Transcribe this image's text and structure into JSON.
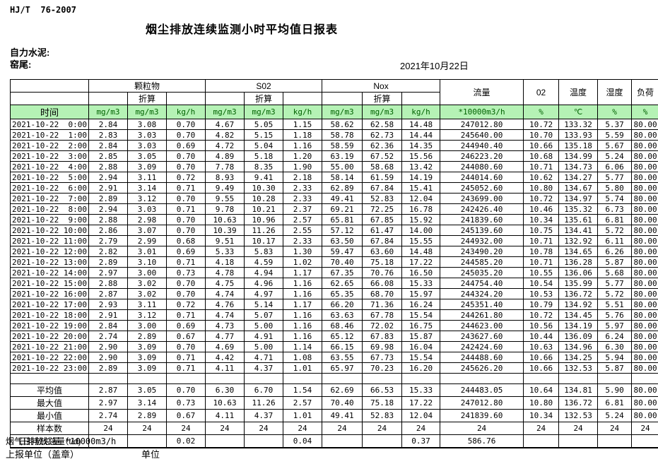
{
  "meta": {
    "standard": "HJ/T  76-2007",
    "title": "烟尘排放连续监测小时平均值日报表",
    "company": "自力水泥:",
    "location": "窑尾:",
    "date": "2021年10月22日"
  },
  "table": {
    "header": {
      "time_label": "时间",
      "groups": {
        "pm": "颗粒物",
        "so2": "S02",
        "nox": "Nox"
      },
      "converted_label": "折算",
      "flow_label": "流量",
      "o2_label": "02",
      "temp_label": "温度",
      "humidity_label": "湿度",
      "load_label": "负荷",
      "units": [
        "mg/m3",
        "mg/m3",
        "kg/h",
        "mg/m3",
        "mg/m3",
        "kg/h",
        "mg/m3",
        "mg/m3",
        "kg/h",
        "*10000m3/h",
        "%",
        "℃",
        "%",
        "%"
      ]
    },
    "rows": [
      {
        "time": "2021-10-22  0:00",
        "values": [
          "2.84",
          "3.08",
          "0.70",
          "4.67",
          "5.05",
          "1.15",
          "58.62",
          "62.58",
          "14.48",
          "247012.80",
          "10.72",
          "133.32",
          "5.37",
          "80.00"
        ]
      },
      {
        "time": "2021-10-22  1:00",
        "values": [
          "2.83",
          "3.03",
          "0.70",
          "4.82",
          "5.15",
          "1.18",
          "58.78",
          "62.73",
          "14.44",
          "245640.00",
          "10.70",
          "133.93",
          "5.59",
          "80.00"
        ]
      },
      {
        "time": "2021-10-22  2:00",
        "values": [
          "2.84",
          "3.03",
          "0.69",
          "4.72",
          "5.04",
          "1.16",
          "58.59",
          "62.36",
          "14.35",
          "244940.40",
          "10.66",
          "135.18",
          "5.67",
          "80.00"
        ]
      },
      {
        "time": "2021-10-22  3:00",
        "values": [
          "2.85",
          "3.05",
          "0.70",
          "4.89",
          "5.18",
          "1.20",
          "63.19",
          "67.52",
          "15.56",
          "246223.20",
          "10.68",
          "134.99",
          "5.24",
          "80.00"
        ]
      },
      {
        "time": "2021-10-22  4:00",
        "values": [
          "2.88",
          "3.09",
          "0.70",
          "7.78",
          "8.35",
          "1.90",
          "55.00",
          "58.68",
          "13.42",
          "244080.60",
          "10.71",
          "134.73",
          "6.06",
          "80.00"
        ]
      },
      {
        "time": "2021-10-22  5:00",
        "values": [
          "2.94",
          "3.11",
          "0.72",
          "8.93",
          "9.41",
          "2.18",
          "58.14",
          "61.59",
          "14.19",
          "244014.60",
          "10.62",
          "134.27",
          "5.77",
          "80.00"
        ]
      },
      {
        "time": "2021-10-22  6:00",
        "values": [
          "2.91",
          "3.14",
          "0.71",
          "9.49",
          "10.30",
          "2.33",
          "62.89",
          "67.84",
          "15.41",
          "245052.60",
          "10.80",
          "134.67",
          "5.80",
          "80.00"
        ]
      },
      {
        "time": "2021-10-22  7:00",
        "values": [
          "2.89",
          "3.12",
          "0.70",
          "9.55",
          "10.28",
          "2.33",
          "49.41",
          "52.83",
          "12.04",
          "243699.00",
          "10.72",
          "134.97",
          "5.74",
          "80.00"
        ]
      },
      {
        "time": "2021-10-22  8:00",
        "values": [
          "2.94",
          "3.03",
          "0.71",
          "9.78",
          "10.21",
          "2.37",
          "69.21",
          "72.25",
          "16.78",
          "242426.40",
          "10.46",
          "135.32",
          "6.73",
          "80.00"
        ]
      },
      {
        "time": "2021-10-22  9:00",
        "values": [
          "2.88",
          "2.98",
          "0.70",
          "10.63",
          "10.96",
          "2.57",
          "65.81",
          "67.85",
          "15.92",
          "241839.60",
          "10.34",
          "135.61",
          "6.81",
          "80.00"
        ]
      },
      {
        "time": "2021-10-22 10:00",
        "values": [
          "2.86",
          "3.07",
          "0.70",
          "10.39",
          "11.26",
          "2.55",
          "57.12",
          "61.47",
          "14.00",
          "245139.60",
          "10.75",
          "134.41",
          "5.72",
          "80.00"
        ]
      },
      {
        "time": "2021-10-22 11:00",
        "values": [
          "2.79",
          "2.99",
          "0.68",
          "9.51",
          "10.17",
          "2.33",
          "63.50",
          "67.84",
          "15.55",
          "244932.00",
          "10.71",
          "132.92",
          "6.11",
          "80.00"
        ]
      },
      {
        "time": "2021-10-22 12:00",
        "values": [
          "2.82",
          "3.01",
          "0.69",
          "5.33",
          "5.83",
          "1.30",
          "59.47",
          "63.60",
          "14.48",
          "243490.20",
          "10.78",
          "134.65",
          "6.26",
          "80.00"
        ]
      },
      {
        "time": "2021-10-22 13:00",
        "values": [
          "2.89",
          "3.10",
          "0.71",
          "4.18",
          "4.59",
          "1.02",
          "70.40",
          "75.18",
          "17.22",
          "244585.20",
          "10.71",
          "136.28",
          "5.87",
          "80.00"
        ]
      },
      {
        "time": "2021-10-22 14:00",
        "values": [
          "2.97",
          "3.00",
          "0.73",
          "4.78",
          "4.94",
          "1.17",
          "67.35",
          "70.76",
          "16.50",
          "245035.20",
          "10.55",
          "136.06",
          "5.68",
          "80.00"
        ]
      },
      {
        "time": "2021-10-22 15:00",
        "values": [
          "2.88",
          "3.02",
          "0.70",
          "4.75",
          "4.96",
          "1.16",
          "62.65",
          "66.08",
          "15.33",
          "244754.40",
          "10.54",
          "135.99",
          "5.77",
          "80.00"
        ]
      },
      {
        "time": "2021-10-22 16:00",
        "values": [
          "2.87",
          "3.02",
          "0.70",
          "4.74",
          "4.97",
          "1.16",
          "65.35",
          "68.70",
          "15.97",
          "244324.20",
          "10.53",
          "136.72",
          "5.72",
          "80.00"
        ]
      },
      {
        "time": "2021-10-22 17:00",
        "values": [
          "2.93",
          "3.11",
          "0.72",
          "4.76",
          "5.14",
          "1.17",
          "66.20",
          "71.36",
          "16.24",
          "245351.40",
          "10.79",
          "134.92",
          "5.51",
          "80.00"
        ]
      },
      {
        "time": "2021-10-22 18:00",
        "values": [
          "2.91",
          "3.12",
          "0.71",
          "4.74",
          "5.07",
          "1.16",
          "63.63",
          "67.78",
          "15.54",
          "244261.80",
          "10.72",
          "134.45",
          "5.76",
          "80.00"
        ]
      },
      {
        "time": "2021-10-22 19:00",
        "values": [
          "2.84",
          "3.00",
          "0.69",
          "4.73",
          "5.00",
          "1.16",
          "68.46",
          "72.02",
          "16.75",
          "244623.00",
          "10.56",
          "134.19",
          "5.97",
          "80.00"
        ]
      },
      {
        "time": "2021-10-22 20:00",
        "values": [
          "2.74",
          "2.89",
          "0.67",
          "4.77",
          "4.91",
          "1.16",
          "65.12",
          "67.83",
          "15.87",
          "243627.60",
          "10.44",
          "136.09",
          "6.24",
          "80.00"
        ]
      },
      {
        "time": "2021-10-22 21:00",
        "values": [
          "2.90",
          "3.09",
          "0.70",
          "4.69",
          "5.00",
          "1.14",
          "66.15",
          "69.98",
          "16.04",
          "242424.60",
          "10.63",
          "134.96",
          "6.30",
          "80.00"
        ]
      },
      {
        "time": "2021-10-22 22:00",
        "values": [
          "2.90",
          "3.09",
          "0.71",
          "4.42",
          "4.71",
          "1.08",
          "63.55",
          "67.73",
          "15.54",
          "244488.60",
          "10.66",
          "134.25",
          "5.94",
          "80.00"
        ]
      },
      {
        "time": "2021-10-22 23:00",
        "values": [
          "2.89",
          "3.09",
          "0.71",
          "4.11",
          "4.37",
          "1.01",
          "65.97",
          "70.23",
          "16.20",
          "245626.20",
          "10.66",
          "132.53",
          "5.87",
          "80.00"
        ]
      }
    ],
    "summary": [
      {
        "label": "平均值",
        "values": [
          "2.87",
          "3.05",
          "0.70",
          "6.30",
          "6.70",
          "1.54",
          "62.69",
          "66.53",
          "15.33",
          "244483.05",
          "10.64",
          "134.81",
          "5.90",
          "80.00"
        ]
      },
      {
        "label": "最大值",
        "values": [
          "2.97",
          "3.14",
          "0.73",
          "10.63",
          "11.26",
          "2.57",
          "70.40",
          "75.18",
          "17.22",
          "247012.80",
          "10.80",
          "136.72",
          "6.81",
          "80.00"
        ]
      },
      {
        "label": "最小值",
        "values": [
          "2.74",
          "2.89",
          "0.67",
          "4.11",
          "4.37",
          "1.01",
          "49.41",
          "52.83",
          "12.04",
          "241839.60",
          "10.34",
          "132.53",
          "5.24",
          "80.00"
        ]
      },
      {
        "label": "样本数",
        "values": [
          "24",
          "24",
          "24",
          "24",
          "24",
          "24",
          "24",
          "24",
          "24",
          "24",
          "24",
          "24",
          "24",
          "24"
        ]
      },
      {
        "label": "日排放总量（t/d)",
        "values": [
          "",
          "",
          "0.02",
          "",
          "",
          "0.04",
          "",
          "",
          "0.37",
          "586.76",
          "",
          "",
          "",
          ""
        ]
      }
    ]
  },
  "footer": {
    "flow_note_prefix": "烟气日排放总量",
    "flow_note_unit": "*10000m3/h",
    "report_unit_label": "上报单位（盖章）",
    "unit_label": "单位"
  }
}
